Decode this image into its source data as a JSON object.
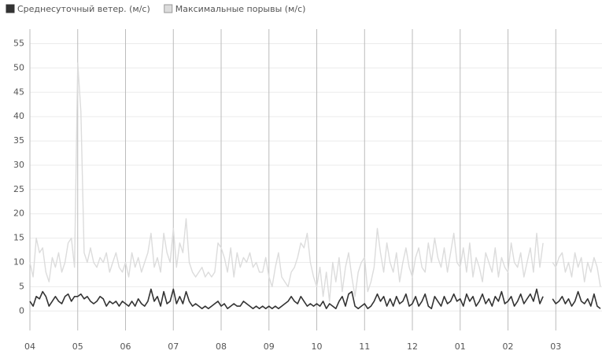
{
  "chart_data": {
    "type": "line",
    "categories": [
      "04",
      null,
      null,
      null,
      null,
      null,
      null,
      null,
      null,
      null,
      null,
      null,
      null,
      null,
      null,
      "05",
      null,
      null,
      null,
      null,
      null,
      null,
      null,
      null,
      null,
      null,
      null,
      null,
      null,
      null,
      "06",
      null,
      null,
      null,
      null,
      null,
      null,
      null,
      null,
      null,
      null,
      null,
      null,
      null,
      null,
      "07",
      null,
      null,
      null,
      null,
      null,
      null,
      null,
      null,
      null,
      null,
      null,
      null,
      null,
      null,
      "08",
      null,
      null,
      null,
      null,
      null,
      null,
      null,
      null,
      null,
      null,
      null,
      null,
      null,
      null,
      "09",
      null,
      null,
      null,
      null,
      null,
      null,
      null,
      null,
      null,
      null,
      null,
      null,
      null,
      null,
      "10",
      null,
      null,
      null,
      null,
      null,
      null,
      null,
      null,
      null,
      null,
      null,
      null,
      null,
      null,
      "11",
      null,
      null,
      null,
      null,
      null,
      null,
      null,
      null,
      null,
      null,
      null,
      null,
      null,
      null,
      "12",
      null,
      null,
      null,
      null,
      null,
      null,
      null,
      null,
      null,
      null,
      null,
      null,
      null,
      null,
      "01",
      null,
      null,
      null,
      null,
      null,
      null,
      null,
      null,
      null,
      null,
      null,
      null,
      null,
      null,
      "02",
      null,
      null,
      null,
      null,
      null,
      null,
      null,
      null,
      null,
      null,
      null,
      null,
      null,
      null,
      "03",
      null,
      null,
      null,
      null,
      null,
      null,
      null,
      null,
      null,
      null,
      null,
      null,
      null,
      null
    ],
    "series": [
      {
        "name": "Среднесуточный ветер. (м/с)",
        "color": "#333333",
        "values": [
          2,
          1,
          3,
          2.5,
          4,
          3,
          1,
          2,
          3,
          2,
          1.5,
          3,
          3.5,
          2,
          3,
          3,
          3.5,
          2.5,
          3,
          2,
          1.5,
          2,
          3,
          2.5,
          1,
          2,
          1.5,
          2,
          1,
          2,
          1.5,
          1,
          2,
          1,
          2.5,
          1.5,
          1,
          2,
          4.5,
          2,
          3,
          1,
          4,
          1.5,
          2,
          4.5,
          1.5,
          3,
          1.5,
          4,
          2,
          1,
          1.5,
          1,
          0.5,
          1,
          0.5,
          1,
          1.5,
          2,
          1,
          1.5,
          0.5,
          1,
          1.5,
          1,
          1,
          2,
          1.5,
          1,
          0.5,
          1,
          0.5,
          1,
          0.5,
          1,
          0.5,
          1,
          0.5,
          1,
          1.5,
          2,
          3,
          2,
          1.5,
          3,
          2,
          1,
          1.5,
          1,
          1.5,
          1,
          2,
          0.5,
          1.5,
          1,
          0.5,
          2,
          3,
          1,
          3.5,
          4,
          1,
          0.5,
          1,
          1.5,
          0.5,
          1,
          2,
          3.5,
          2,
          3,
          1,
          2.5,
          1,
          3,
          1.5,
          2,
          3.5,
          1,
          1.5,
          3,
          1,
          2,
          3.5,
          1,
          0.5,
          3,
          2,
          1,
          3,
          1.5,
          2,
          3.5,
          2,
          2.5,
          1,
          3.5,
          2,
          3,
          1,
          2,
          3.5,
          1.5,
          2.5,
          1,
          3,
          2,
          4,
          1.5,
          2,
          3,
          1,
          2,
          3.5,
          1.5,
          2.5,
          3.5,
          2,
          4.5,
          1.5,
          3,
          null,
          null,
          2.5,
          1.5,
          2,
          3,
          1.5,
          2.5,
          1,
          2,
          4,
          2,
          1.5,
          2.5,
          1,
          3.5,
          1,
          0.5
        ]
      },
      {
        "name": "Максимальные порывы (м/с)",
        "color": "#dcdcdc",
        "values": [
          10,
          7,
          15,
          12,
          13,
          8,
          6,
          11,
          9,
          12,
          8,
          10,
          14,
          15,
          9,
          51,
          41,
          12,
          10,
          13,
          10,
          9,
          11,
          10,
          12,
          8,
          10,
          12,
          9,
          8,
          10,
          7,
          12,
          9,
          11,
          8,
          10,
          12,
          16,
          9,
          11,
          8,
          16,
          12,
          10,
          17,
          9,
          14,
          12,
          19,
          10,
          8,
          7,
          8,
          9,
          7,
          8,
          7,
          8,
          14,
          13,
          11,
          8,
          13,
          7,
          12,
          9,
          11,
          10,
          12,
          9,
          10,
          8,
          8,
          11,
          7,
          5,
          9,
          12,
          7,
          6,
          5,
          8,
          9,
          11,
          14,
          13,
          16,
          10,
          7,
          5,
          9,
          3,
          8,
          2,
          10,
          6,
          11,
          4,
          9,
          12,
          7,
          3,
          8,
          10,
          11,
          4,
          6,
          9,
          17,
          12,
          8,
          14,
          10,
          8,
          12,
          6,
          10,
          13,
          9,
          7,
          11,
          13,
          9,
          8,
          14,
          10,
          15,
          11,
          9,
          13,
          8,
          12,
          16,
          10,
          9,
          13,
          8,
          14,
          7,
          11,
          9,
          6,
          12,
          10,
          8,
          13,
          7,
          11,
          9,
          8,
          14,
          10,
          9,
          12,
          7,
          10,
          13,
          8,
          16,
          9,
          14,
          null,
          null,
          10,
          9,
          11,
          12,
          8,
          10,
          7,
          12,
          9,
          11,
          6,
          10,
          8,
          11,
          9,
          5
        ]
      }
    ],
    "ylim": [
      -4,
      58
    ],
    "yticks": [
      0,
      5,
      10,
      15,
      20,
      25,
      30,
      35,
      40,
      45,
      50,
      55
    ],
    "grid": true
  }
}
